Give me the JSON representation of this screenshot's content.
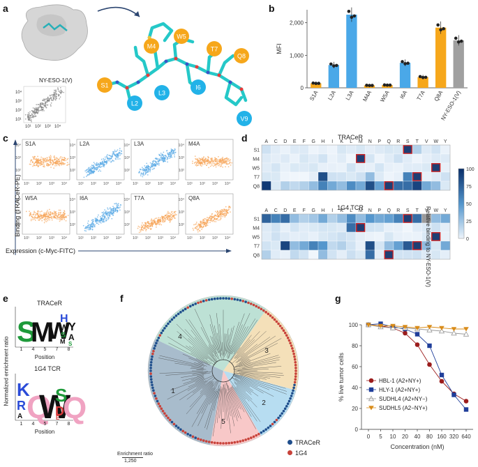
{
  "panel_labels": {
    "a": "a",
    "b": "b",
    "c": "c",
    "d": "d",
    "e": "e",
    "f": "f",
    "g": "g"
  },
  "panel_a": {
    "scatter_label": "NY-ESO-1(V)",
    "residues": [
      {
        "name": "S1",
        "color": "#f6a71b"
      },
      {
        "name": "L2",
        "color": "#22b2e8"
      },
      {
        "name": "L3",
        "color": "#22b2e8"
      },
      {
        "name": "M4",
        "color": "#f6a71b"
      },
      {
        "name": "W5",
        "color": "#f6a71b"
      },
      {
        "name": "I6",
        "color": "#22b2e8"
      },
      {
        "name": "T7",
        "color": "#f6a71b"
      },
      {
        "name": "Q8",
        "color": "#f6a71b"
      },
      {
        "name": "V9",
        "color": "#22b2e8"
      }
    ]
  },
  "chart_data": [
    {
      "panel": "b",
      "type": "bar",
      "ylabel": "MFI",
      "ylim": [
        0,
        2400
      ],
      "yticks": [
        "0",
        "1,000",
        "2,000"
      ],
      "categories": [
        "S1A",
        "L2A",
        "L3A",
        "M4A",
        "W5A",
        "I6A",
        "T7A",
        "Q8A",
        "NY-ESO-1(V)"
      ],
      "values": [
        140,
        700,
        2250,
        75,
        85,
        770,
        330,
        1850,
        1460
      ],
      "colors": [
        "#f6a71b",
        "#4aa8e8",
        "#4aa8e8",
        "#f6a71b",
        "#f6a71b",
        "#4aa8e8",
        "#f6a71b",
        "#f6a71b",
        "#a0a0a0"
      ]
    },
    {
      "panel": "g",
      "type": "line",
      "xlabel": "Concentration (nM)",
      "ylabel": "% live tumor cells",
      "ylim": [
        0,
        100
      ],
      "yticks": [
        "0",
        "20",
        "40",
        "60",
        "80",
        "100"
      ],
      "xticks": [
        "0",
        "5",
        "10",
        "20",
        "40",
        "80",
        "160",
        "320",
        "640"
      ],
      "series": [
        {
          "name": "HBL-1 (A2+NY+)",
          "color": "#9b1c1c",
          "marker": "circle",
          "values": [
            100,
            99,
            97,
            92,
            81,
            62,
            46,
            34,
            27
          ]
        },
        {
          "name": "HLY-1 (A2+NY+)",
          "color": "#1f3e9a",
          "marker": "square",
          "values": [
            100,
            101,
            98,
            96,
            91,
            80,
            52,
            33,
            19
          ]
        },
        {
          "name": "SUDHL4 (A2+NY−)",
          "color": "#999999",
          "marker": "triangle",
          "values": [
            100,
            98,
            97,
            97,
            96,
            95,
            94,
            92,
            91
          ]
        },
        {
          "name": "SUDHL5 (A2−NY+)",
          "color": "#d98c1a",
          "marker": "triangle-down",
          "values": [
            100,
            99,
            99,
            98,
            97,
            98,
            97,
            96,
            96
          ]
        }
      ]
    }
  ],
  "panel_c": {
    "ylabel": "Binding (TRACeR-PE)",
    "xlabel": "Expression (c-Myc-FITC)",
    "plots": [
      {
        "name": "S1A",
        "color": "#f6a55a"
      },
      {
        "name": "L2A",
        "color": "#5aa9e6"
      },
      {
        "name": "L3A",
        "color": "#5aa9e6"
      },
      {
        "name": "M4A",
        "color": "#f6a55a"
      },
      {
        "name": "W5A",
        "color": "#f6a55a"
      },
      {
        "name": "I6A",
        "color": "#5aa9e6"
      },
      {
        "name": "T7A",
        "color": "#f6a55a"
      },
      {
        "name": "Q8A",
        "color": "#f6a55a"
      }
    ]
  },
  "panel_d": {
    "title1": "TRACeR",
    "title2": "1G4 TCR",
    "columns": [
      "A",
      "C",
      "D",
      "E",
      "F",
      "G",
      "H",
      "I",
      "K",
      "L",
      "M",
      "N",
      "P",
      "Q",
      "R",
      "S",
      "T",
      "V",
      "W",
      "Y"
    ],
    "rows1": [
      "S1",
      "M4",
      "W5",
      "T7",
      "Q8"
    ],
    "rows2": [
      "S1",
      "M4",
      "W5",
      "T7",
      "Q8"
    ],
    "colorbar_label": "Relative binding to NY-ESO-1(V)",
    "colorbar_ticks": [
      "100",
      "75",
      "50",
      "25",
      "0"
    ]
  },
  "panel_e": {
    "title1": "TRACeR",
    "title2": "1G4 TCR",
    "ylabel": "Normalized enrichment ratio",
    "xlabel": "Position",
    "positions": [
      "1",
      "4",
      "5",
      "7",
      "8"
    ]
  },
  "panel_f": {
    "clusters": [
      "1",
      "2",
      "3",
      "4",
      "5"
    ],
    "legend": [
      {
        "label": "TRACeR",
        "color": "#1f4e8c"
      },
      {
        "label": "1G4",
        "color": "#c8423a"
      }
    ],
    "scale_label": "Enrichment ratio",
    "scale_value": "1,250"
  }
}
